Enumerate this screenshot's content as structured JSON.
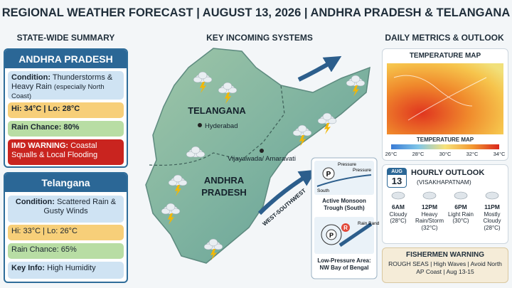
{
  "header": {
    "title": "REGIONAL WEATHER FORECAST | AUGUST 13, 2026 | ANDHRA PRADESH & TELANGANA"
  },
  "summary": {
    "heading": "STATE-WIDE SUMMARY",
    "andhra_pradesh": {
      "name": "ANDHRA PRADESH",
      "condition_label": "Condition:",
      "condition": "Thunderstorms & Heavy Rain",
      "condition_note": "(especially North Coast)",
      "temps": "Hi: 34°C | Lo: 28°C",
      "rain": "Rain Chance: 80%",
      "warning_label": "IMD WARNING:",
      "warning": "Coastal Squalls & Local Flooding"
    },
    "telangana": {
      "name": "Telangana",
      "condition_label": "Condition:",
      "condition": "Scattered Rain & Gusty Winds",
      "temps": "Hi: 33°C | Lo: 26°C",
      "rain": "Rain Chance: 65%",
      "info_label": "Key Info:",
      "info": "High Humidity"
    }
  },
  "systems": {
    "heading": "KEY INCOMING SYSTEMS",
    "map_labels": {
      "telangana": "TELANGANA",
      "hyderabad": "Hyderabad",
      "andhra_line1": "ANDHRA",
      "andhra_line2": "PRADESH",
      "vijayawada": "Vijayawada/ Amaravati",
      "wind": "WEST-SOUTHWEST"
    },
    "trough": {
      "symbol": "P",
      "pressure_top": "Pressure",
      "pressure_right": "Pressure",
      "south": "South",
      "caption": "Active Monsoon Trough (South)"
    },
    "low_pressure": {
      "symbol_p": "P",
      "symbol_r": "R",
      "rain_band": "Rain Band",
      "caption": "Low-Pressure Area: NW Bay of Bengal"
    }
  },
  "metrics": {
    "heading": "DAILY METRICS & OUTLOOK",
    "temperature_map": {
      "title": "TEMPERATURE MAP",
      "legend_title": "TEMPERATURE MAP",
      "legend_ticks": [
        "26°C",
        "28°C",
        "30°C",
        "32°C",
        "34°C"
      ]
    },
    "hourly": {
      "month": "AUG",
      "day": "13",
      "title": "HOURLY OUTLOOK",
      "location": "(VISAKHAPATNAM)",
      "entries": [
        {
          "time": "6AM",
          "condition": "Cloudy",
          "temp": "(28°C)"
        },
        {
          "time": "12PM",
          "condition": "Heavy Rain/Storm",
          "temp": "(32°C)"
        },
        {
          "time": "6PM",
          "condition": "Light Rain",
          "temp": "(30°C)"
        },
        {
          "time": "11PM",
          "condition": "Mostly Cloudy",
          "temp": "(28°C)"
        }
      ]
    },
    "fishermen": {
      "title": "FISHERMEN WARNING",
      "text": "ROUGH SEAS | High Waves | Avoid North AP Coast | Aug 13-15"
    }
  }
}
